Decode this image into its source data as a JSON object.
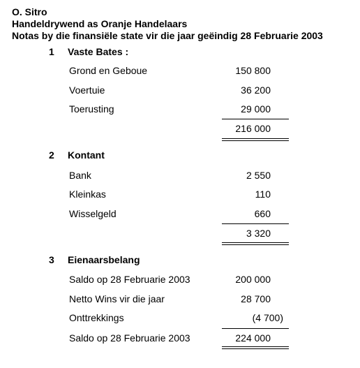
{
  "header": {
    "name": "O. Sitro",
    "business": "Handeldrywend as Oranje Handelaars",
    "subtitle": "Notas by die finansiële state vir die jaar geëindig 28 Februarie 2003"
  },
  "sections": [
    {
      "number": "1",
      "title": "Vaste Bates :",
      "rows": [
        {
          "label": "Grond en Geboue",
          "amount": "150 800"
        },
        {
          "label": "Voertuie",
          "amount": "36 200"
        },
        {
          "label": "Toerusting",
          "amount": "29 000"
        }
      ],
      "total": "216 000"
    },
    {
      "number": "2",
      "title": "Kontant",
      "rows": [
        {
          "label": "Bank",
          "amount": "2 550"
        },
        {
          "label": "Kleinkas",
          "amount": "110"
        },
        {
          "label": "Wisselgeld",
          "amount": "660"
        }
      ],
      "total": "3 320"
    },
    {
      "number": "3",
      "title": "Eienaarsbelang",
      "rows": [
        {
          "label": "Saldo op 28 Februarie 2003",
          "amount": "200 000"
        },
        {
          "label": "Netto Wins vir die jaar",
          "amount": "28 700"
        },
        {
          "label": "Onttrekkings",
          "amount": "(4 700)"
        }
      ],
      "closing": {
        "label": "Saldo op 28 Februarie 2003",
        "amount": "224 000"
      }
    }
  ]
}
